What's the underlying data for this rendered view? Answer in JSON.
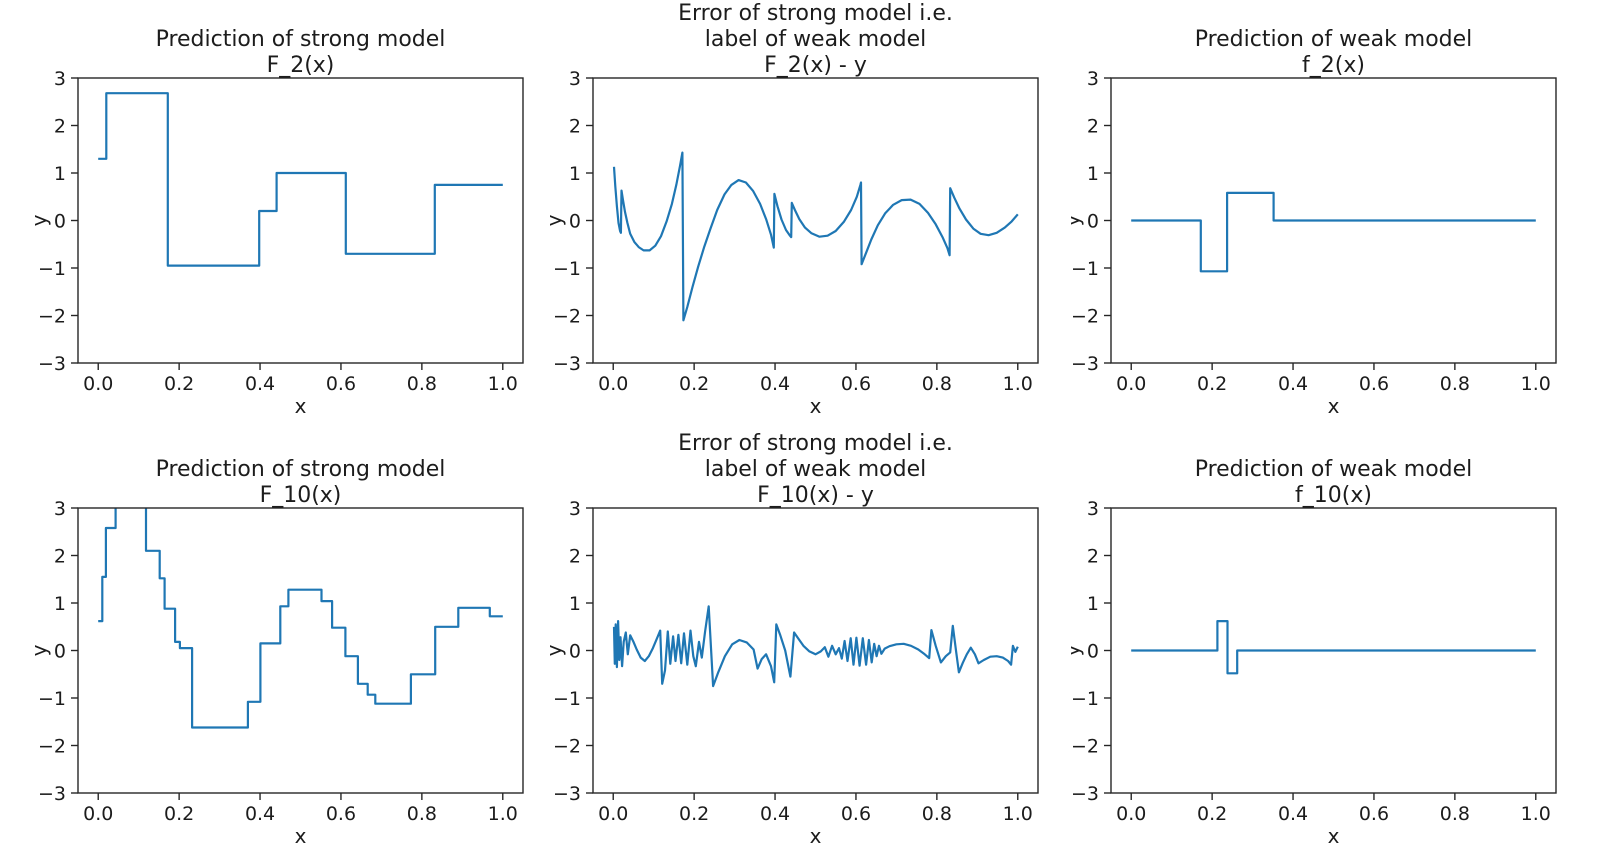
{
  "figure": {
    "background": "#ffffff",
    "line_color": "#1f77b4",
    "text_color": "#1c1c1c",
    "axis_color": "#262626"
  },
  "axes_common": {
    "xlabel": "x",
    "ylabel": "y",
    "xlim": [
      -0.05,
      1.05
    ],
    "ylim": [
      -3,
      3
    ],
    "xtick_values": [
      0.0,
      0.2,
      0.4,
      0.6,
      0.8,
      1.0
    ],
    "xtick_labels": [
      "0.0",
      "0.2",
      "0.4",
      "0.6",
      "0.8",
      "1.0"
    ],
    "ytick_values": [
      3,
      2,
      1,
      0,
      -1,
      -2,
      -3
    ],
    "ytick_labels": [
      "3",
      "2",
      "1",
      "0",
      "−1",
      "−2",
      "−3"
    ],
    "grid": false,
    "legend": "none"
  },
  "chart_data": [
    {
      "id": "strong-model-F2",
      "type": "line",
      "line_shape": "step",
      "title_lines": [
        "Prediction of strong model",
        "F_2(x)"
      ],
      "steps": [
        [
          0.0,
          0.02,
          1.3
        ],
        [
          0.02,
          0.172,
          2.68
        ],
        [
          0.172,
          0.398,
          -0.95
        ],
        [
          0.398,
          0.441,
          0.2
        ],
        [
          0.441,
          0.612,
          1.0
        ],
        [
          0.612,
          0.832,
          -0.7
        ],
        [
          0.832,
          1.0,
          0.75
        ]
      ]
    },
    {
      "id": "error-F2",
      "type": "line",
      "line_shape": "linear",
      "title_lines": [
        "Error of strong model i.e.",
        "label of weak model",
        "F_2(x) - y"
      ],
      "points": [
        [
          0.002,
          1.13
        ],
        [
          0.005,
          0.72
        ],
        [
          0.009,
          0.3
        ],
        [
          0.013,
          -0.05
        ],
        [
          0.017,
          -0.22
        ],
        [
          0.019,
          -0.26
        ],
        [
          0.0205,
          0.63
        ],
        [
          0.024,
          0.44
        ],
        [
          0.029,
          0.18
        ],
        [
          0.035,
          -0.05
        ],
        [
          0.042,
          -0.28
        ],
        [
          0.052,
          -0.45
        ],
        [
          0.063,
          -0.56
        ],
        [
          0.075,
          -0.63
        ],
        [
          0.09,
          -0.63
        ],
        [
          0.104,
          -0.53
        ],
        [
          0.118,
          -0.33
        ],
        [
          0.132,
          -0.02
        ],
        [
          0.145,
          0.35
        ],
        [
          0.156,
          0.75
        ],
        [
          0.165,
          1.15
        ],
        [
          0.171,
          1.43
        ],
        [
          0.1735,
          -2.1
        ],
        [
          0.183,
          -1.82
        ],
        [
          0.196,
          -1.4
        ],
        [
          0.21,
          -0.97
        ],
        [
          0.225,
          -0.55
        ],
        [
          0.24,
          -0.18
        ],
        [
          0.257,
          0.22
        ],
        [
          0.275,
          0.55
        ],
        [
          0.292,
          0.75
        ],
        [
          0.31,
          0.85
        ],
        [
          0.328,
          0.8
        ],
        [
          0.346,
          0.62
        ],
        [
          0.363,
          0.35
        ],
        [
          0.378,
          0.03
        ],
        [
          0.39,
          -0.3
        ],
        [
          0.397,
          -0.57
        ],
        [
          0.3985,
          0.56
        ],
        [
          0.406,
          0.3
        ],
        [
          0.416,
          0.02
        ],
        [
          0.427,
          -0.2
        ],
        [
          0.437,
          -0.32
        ],
        [
          0.44,
          -0.35
        ],
        [
          0.4415,
          0.37
        ],
        [
          0.449,
          0.22
        ],
        [
          0.46,
          0.03
        ],
        [
          0.474,
          -0.15
        ],
        [
          0.49,
          -0.27
        ],
        [
          0.51,
          -0.34
        ],
        [
          0.53,
          -0.32
        ],
        [
          0.55,
          -0.22
        ],
        [
          0.57,
          -0.03
        ],
        [
          0.588,
          0.22
        ],
        [
          0.602,
          0.5
        ],
        [
          0.611,
          0.75
        ],
        [
          0.6125,
          0.8
        ],
        [
          0.614,
          -0.92
        ],
        [
          0.625,
          -0.68
        ],
        [
          0.638,
          -0.4
        ],
        [
          0.654,
          -0.1
        ],
        [
          0.672,
          0.15
        ],
        [
          0.692,
          0.33
        ],
        [
          0.713,
          0.43
        ],
        [
          0.735,
          0.44
        ],
        [
          0.757,
          0.35
        ],
        [
          0.778,
          0.16
        ],
        [
          0.797,
          -0.08
        ],
        [
          0.814,
          -0.35
        ],
        [
          0.826,
          -0.58
        ],
        [
          0.8315,
          -0.73
        ],
        [
          0.833,
          0.68
        ],
        [
          0.843,
          0.48
        ],
        [
          0.856,
          0.25
        ],
        [
          0.872,
          0.02
        ],
        [
          0.89,
          -0.17
        ],
        [
          0.908,
          -0.28
        ],
        [
          0.928,
          -0.31
        ],
        [
          0.948,
          -0.26
        ],
        [
          0.968,
          -0.15
        ],
        [
          0.985,
          -0.02
        ],
        [
          1.0,
          0.13
        ]
      ]
    },
    {
      "id": "weak-model-f2",
      "type": "line",
      "line_shape": "step",
      "title_lines": [
        "Prediction of weak model",
        "f_2(x)"
      ],
      "steps": [
        [
          0.0,
          0.172,
          0.0
        ],
        [
          0.172,
          0.237,
          -1.07
        ],
        [
          0.237,
          0.352,
          0.58
        ],
        [
          0.352,
          1.0,
          0.0
        ]
      ]
    },
    {
      "id": "strong-model-F10",
      "type": "line",
      "line_shape": "step",
      "title_lines": [
        "Prediction of strong model",
        "F_10(x)"
      ],
      "steps": [
        [
          0.0,
          0.01,
          0.62
        ],
        [
          0.01,
          0.019,
          1.55
        ],
        [
          0.019,
          0.043,
          2.58
        ],
        [
          0.043,
          0.118,
          3.6
        ],
        [
          0.118,
          0.152,
          2.1
        ],
        [
          0.152,
          0.164,
          1.52
        ],
        [
          0.164,
          0.19,
          0.88
        ],
        [
          0.19,
          0.202,
          0.18
        ],
        [
          0.202,
          0.232,
          0.05
        ],
        [
          0.232,
          0.37,
          -1.62
        ],
        [
          0.37,
          0.401,
          -1.08
        ],
        [
          0.401,
          0.45,
          0.15
        ],
        [
          0.45,
          0.47,
          0.93
        ],
        [
          0.47,
          0.552,
          1.28
        ],
        [
          0.552,
          0.578,
          1.04
        ],
        [
          0.578,
          0.611,
          0.48
        ],
        [
          0.611,
          0.642,
          -0.12
        ],
        [
          0.642,
          0.666,
          -0.7
        ],
        [
          0.666,
          0.685,
          -0.93
        ],
        [
          0.685,
          0.773,
          -1.12
        ],
        [
          0.773,
          0.833,
          -0.5
        ],
        [
          0.833,
          0.89,
          0.5
        ],
        [
          0.89,
          0.968,
          0.9
        ],
        [
          0.968,
          1.0,
          0.72
        ]
      ]
    },
    {
      "id": "error-F10",
      "type": "line",
      "line_shape": "linear",
      "title_lines": [
        "Error of strong model i.e.",
        "label of weak model",
        "F_10(x) - y"
      ],
      "points": [
        [
          0.002,
          0.5
        ],
        [
          0.004,
          -0.28
        ],
        [
          0.006,
          0.55
        ],
        [
          0.009,
          -0.35
        ],
        [
          0.012,
          0.62
        ],
        [
          0.015,
          -0.2
        ],
        [
          0.018,
          0.28
        ],
        [
          0.022,
          -0.33
        ],
        [
          0.026,
          0.18
        ],
        [
          0.031,
          0.38
        ],
        [
          0.036,
          -0.08
        ],
        [
          0.042,
          0.32
        ],
        [
          0.05,
          0.18
        ],
        [
          0.058,
          0.02
        ],
        [
          0.068,
          -0.15
        ],
        [
          0.078,
          -0.22
        ],
        [
          0.088,
          -0.12
        ],
        [
          0.098,
          0.05
        ],
        [
          0.108,
          0.25
        ],
        [
          0.116,
          0.42
        ],
        [
          0.121,
          -0.7
        ],
        [
          0.128,
          -0.42
        ],
        [
          0.135,
          0.4
        ],
        [
          0.141,
          -0.28
        ],
        [
          0.148,
          0.3
        ],
        [
          0.154,
          -0.22
        ],
        [
          0.161,
          0.33
        ],
        [
          0.168,
          -0.27
        ],
        [
          0.175,
          0.36
        ],
        [
          0.183,
          -0.3
        ],
        [
          0.191,
          0.42
        ],
        [
          0.198,
          -0.12
        ],
        [
          0.204,
          -0.33
        ],
        [
          0.212,
          0.18
        ],
        [
          0.219,
          -0.15
        ],
        [
          0.227,
          0.4
        ],
        [
          0.236,
          0.93
        ],
        [
          0.247,
          -0.75
        ],
        [
          0.26,
          -0.45
        ],
        [
          0.276,
          -0.12
        ],
        [
          0.294,
          0.13
        ],
        [
          0.312,
          0.22
        ],
        [
          0.33,
          0.17
        ],
        [
          0.347,
          0.02
        ],
        [
          0.357,
          -0.38
        ],
        [
          0.367,
          -0.18
        ],
        [
          0.378,
          -0.08
        ],
        [
          0.39,
          -0.33
        ],
        [
          0.398,
          -0.67
        ],
        [
          0.403,
          0.55
        ],
        [
          0.413,
          0.32
        ],
        [
          0.425,
          0.0
        ],
        [
          0.438,
          -0.55
        ],
        [
          0.447,
          0.38
        ],
        [
          0.457,
          0.26
        ],
        [
          0.47,
          0.1
        ],
        [
          0.485,
          -0.02
        ],
        [
          0.5,
          -0.08
        ],
        [
          0.513,
          -0.02
        ],
        [
          0.523,
          0.07
        ],
        [
          0.532,
          -0.13
        ],
        [
          0.541,
          0.1
        ],
        [
          0.55,
          -0.08
        ],
        [
          0.558,
          0.05
        ],
        [
          0.565,
          -0.17
        ],
        [
          0.572,
          0.2
        ],
        [
          0.579,
          -0.22
        ],
        [
          0.587,
          0.26
        ],
        [
          0.594,
          -0.3
        ],
        [
          0.601,
          0.27
        ],
        [
          0.609,
          -0.32
        ],
        [
          0.617,
          0.26
        ],
        [
          0.625,
          -0.3
        ],
        [
          0.632,
          0.22
        ],
        [
          0.639,
          -0.25
        ],
        [
          0.645,
          0.14
        ],
        [
          0.651,
          -0.12
        ],
        [
          0.657,
          0.1
        ],
        [
          0.663,
          -0.07
        ],
        [
          0.671,
          0.04
        ],
        [
          0.683,
          0.09
        ],
        [
          0.7,
          0.13
        ],
        [
          0.718,
          0.14
        ],
        [
          0.736,
          0.1
        ],
        [
          0.754,
          0.02
        ],
        [
          0.77,
          -0.08
        ],
        [
          0.781,
          -0.16
        ],
        [
          0.7865,
          0.43
        ],
        [
          0.797,
          0.1
        ],
        [
          0.81,
          -0.25
        ],
        [
          0.822,
          -0.12
        ],
        [
          0.833,
          -0.04
        ],
        [
          0.8395,
          0.52
        ],
        [
          0.848,
          -0.05
        ],
        [
          0.8545,
          -0.46
        ],
        [
          0.864,
          -0.26
        ],
        [
          0.874,
          -0.08
        ],
        [
          0.884,
          0.06
        ],
        [
          0.894,
          -0.08
        ],
        [
          0.903,
          -0.27
        ],
        [
          0.916,
          -0.2
        ],
        [
          0.932,
          -0.13
        ],
        [
          0.948,
          -0.12
        ],
        [
          0.963,
          -0.15
        ],
        [
          0.976,
          -0.22
        ],
        [
          0.9835,
          -0.3
        ],
        [
          0.988,
          0.1
        ],
        [
          0.994,
          -0.03
        ],
        [
          1.0,
          0.08
        ]
      ]
    },
    {
      "id": "weak-model-f10",
      "type": "line",
      "line_shape": "step",
      "title_lines": [
        "Prediction of weak model",
        "f_10(x)"
      ],
      "steps": [
        [
          0.0,
          0.213,
          0.0
        ],
        [
          0.213,
          0.238,
          0.62
        ],
        [
          0.238,
          0.262,
          -0.48
        ],
        [
          0.262,
          1.0,
          0.0
        ]
      ]
    }
  ]
}
